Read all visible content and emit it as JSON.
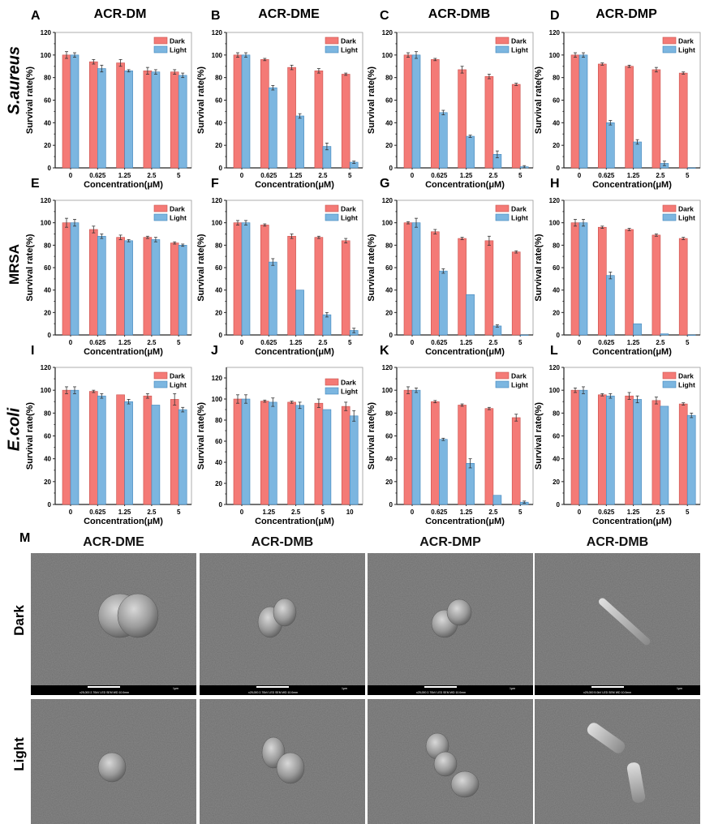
{
  "colors": {
    "dark": "#f47a76",
    "dark_edge": "#c9504c",
    "light": "#7cb6e0",
    "light_edge": "#3f84bb",
    "sem_bg": "#6e6e6e"
  },
  "legend": [
    "Dark",
    "Light"
  ],
  "y_label": "Survival rate(%)",
  "x_label": "Concentration(μM)",
  "row_labels": [
    "S.aureus",
    "MRSA",
    "E.coli"
  ],
  "chart_data": [
    {
      "panel": "A",
      "title": "ACR-DM",
      "type": "bar",
      "categories": [
        "0",
        "0.625",
        "1.25",
        "2.5",
        "5"
      ],
      "ylim": [
        0,
        120
      ],
      "yticks": [
        0,
        20,
        40,
        60,
        80,
        100,
        120
      ],
      "series": [
        {
          "name": "Dark",
          "values": [
            100,
            94,
            93,
            86,
            85
          ],
          "err": [
            3,
            2,
            3,
            3,
            2
          ]
        },
        {
          "name": "Light",
          "values": [
            100,
            88,
            86,
            85,
            82
          ],
          "err": [
            2,
            3,
            1,
            2,
            2
          ]
        }
      ]
    },
    {
      "panel": "B",
      "title": "ACR-DME",
      "type": "bar",
      "categories": [
        "0",
        "0.625",
        "1.25",
        "2.5",
        "5"
      ],
      "ylim": [
        0,
        120
      ],
      "yticks": [
        0,
        20,
        40,
        60,
        80,
        100,
        120
      ],
      "series": [
        {
          "name": "Dark",
          "values": [
            100,
            96,
            89,
            86,
            83
          ],
          "err": [
            2,
            1,
            2,
            2,
            1
          ]
        },
        {
          "name": "Light",
          "values": [
            100,
            71,
            46,
            19,
            5
          ],
          "err": [
            2,
            2,
            2,
            3,
            1
          ]
        }
      ]
    },
    {
      "panel": "C",
      "title": "ACR-DMB",
      "type": "bar",
      "categories": [
        "0",
        "0.625",
        "1.25",
        "2.5",
        "5"
      ],
      "ylim": [
        0,
        120
      ],
      "yticks": [
        0,
        20,
        40,
        60,
        80,
        100,
        120
      ],
      "series": [
        {
          "name": "Dark",
          "values": [
            100,
            96,
            87,
            81,
            74
          ],
          "err": [
            2,
            1,
            3,
            2,
            1
          ]
        },
        {
          "name": "Light",
          "values": [
            100,
            49,
            28,
            12,
            1
          ],
          "err": [
            3,
            2,
            1,
            3,
            1
          ]
        }
      ]
    },
    {
      "panel": "D",
      "title": "ACR-DMP",
      "type": "bar",
      "categories": [
        "0",
        "0.625",
        "1.25",
        "2.5",
        "5"
      ],
      "ylim": [
        0,
        120
      ],
      "yticks": [
        0,
        20,
        40,
        60,
        80,
        100,
        120
      ],
      "series": [
        {
          "name": "Dark",
          "values": [
            100,
            92,
            90,
            87,
            84
          ],
          "err": [
            2,
            1,
            1,
            2,
            1
          ]
        },
        {
          "name": "Light",
          "values": [
            100,
            40,
            23,
            4,
            0
          ],
          "err": [
            2,
            2,
            2,
            2,
            0
          ]
        }
      ]
    },
    {
      "panel": "E",
      "title": "",
      "type": "bar",
      "categories": [
        "0",
        "0.625",
        "1.25",
        "2.5",
        "5"
      ],
      "ylim": [
        0,
        120
      ],
      "yticks": [
        0,
        20,
        40,
        60,
        80,
        100,
        120
      ],
      "series": [
        {
          "name": "Dark",
          "values": [
            100,
            94,
            87,
            87,
            82
          ],
          "err": [
            4,
            3,
            2,
            1,
            1
          ]
        },
        {
          "name": "Light",
          "values": [
            100,
            88,
            84,
            85,
            80
          ],
          "err": [
            3,
            2,
            1,
            2,
            1
          ]
        }
      ]
    },
    {
      "panel": "F",
      "title": "",
      "type": "bar",
      "categories": [
        "0",
        "0.625",
        "1.25",
        "2.5",
        "5"
      ],
      "ylim": [
        0,
        120
      ],
      "yticks": [
        0,
        20,
        40,
        60,
        80,
        100,
        120
      ],
      "series": [
        {
          "name": "Dark",
          "values": [
            100,
            98,
            88,
            87,
            84
          ],
          "err": [
            2,
            1,
            2,
            1,
            2
          ]
        },
        {
          "name": "Light",
          "values": [
            100,
            65,
            40,
            18,
            4
          ],
          "err": [
            2,
            3,
            0,
            2,
            2
          ]
        }
      ]
    },
    {
      "panel": "G",
      "title": "",
      "type": "bar",
      "categories": [
        "0",
        "0.625",
        "1.25",
        "2.5",
        "5"
      ],
      "ylim": [
        0,
        120
      ],
      "yticks": [
        0,
        20,
        40,
        60,
        80,
        100,
        120
      ],
      "series": [
        {
          "name": "Dark",
          "values": [
            100,
            92,
            86,
            84,
            74
          ],
          "err": [
            1,
            2,
            1,
            4,
            1
          ]
        },
        {
          "name": "Light",
          "values": [
            100,
            57,
            36,
            8,
            0
          ],
          "err": [
            4,
            2,
            0,
            1,
            0
          ]
        }
      ]
    },
    {
      "panel": "H",
      "title": "",
      "type": "bar",
      "categories": [
        "0",
        "0.625",
        "1.25",
        "2.5",
        "5"
      ],
      "ylim": [
        0,
        120
      ],
      "yticks": [
        0,
        20,
        40,
        60,
        80,
        100,
        120
      ],
      "series": [
        {
          "name": "Dark",
          "values": [
            100,
            96,
            94,
            89,
            86
          ],
          "err": [
            3,
            1,
            1,
            1,
            1
          ]
        },
        {
          "name": "Light",
          "values": [
            100,
            53,
            10,
            1,
            0
          ],
          "err": [
            3,
            3,
            0,
            0,
            0
          ]
        }
      ]
    },
    {
      "panel": "I",
      "title": "",
      "type": "bar",
      "categories": [
        "0",
        "0.625",
        "1.25",
        "2.5",
        "5"
      ],
      "ylim": [
        0,
        120
      ],
      "yticks": [
        0,
        20,
        40,
        60,
        80,
        100,
        120
      ],
      "series": [
        {
          "name": "Dark",
          "values": [
            100,
            99,
            96,
            95,
            92
          ],
          "err": [
            3,
            1,
            0,
            2,
            5
          ]
        },
        {
          "name": "Light",
          "values": [
            100,
            95,
            90,
            87,
            83
          ],
          "err": [
            3,
            2,
            2,
            0,
            2
          ]
        }
      ]
    },
    {
      "panel": "J",
      "title": "",
      "type": "bar",
      "categories": [
        "0",
        "1.25",
        "2.5",
        "5",
        "10"
      ],
      "ylim": [
        0,
        130
      ],
      "yticks": [
        0,
        20,
        40,
        60,
        80,
        100,
        120
      ],
      "series": [
        {
          "name": "Dark",
          "values": [
            100,
            98,
            97,
            96,
            93
          ],
          "err": [
            4,
            1,
            1,
            4,
            4
          ]
        },
        {
          "name": "Light",
          "values": [
            100,
            97,
            94,
            90,
            84
          ],
          "err": [
            4,
            4,
            3,
            0,
            5
          ]
        }
      ]
    },
    {
      "panel": "K",
      "title": "",
      "type": "bar",
      "categories": [
        "0",
        "0.625",
        "1.25",
        "2.5",
        "5"
      ],
      "ylim": [
        0,
        120
      ],
      "yticks": [
        0,
        20,
        40,
        60,
        80,
        100,
        120
      ],
      "series": [
        {
          "name": "Dark",
          "values": [
            100,
            90,
            87,
            84,
            76
          ],
          "err": [
            3,
            1,
            1,
            1,
            3
          ]
        },
        {
          "name": "Light",
          "values": [
            100,
            57,
            36,
            8,
            2
          ],
          "err": [
            2,
            1,
            4,
            0,
            1
          ]
        }
      ]
    },
    {
      "panel": "L",
      "title": "",
      "type": "bar",
      "categories": [
        "0",
        "0.625",
        "1.25",
        "2.5",
        "5"
      ],
      "ylim": [
        0,
        120
      ],
      "yticks": [
        0,
        20,
        40,
        60,
        80,
        100,
        120
      ],
      "series": [
        {
          "name": "Dark",
          "values": [
            100,
            96,
            95,
            91,
            88
          ],
          "err": [
            2,
            1,
            3,
            3,
            1
          ]
        },
        {
          "name": "Light",
          "values": [
            100,
            95,
            92,
            86,
            78
          ],
          "err": [
            3,
            2,
            3,
            0,
            2
          ]
        }
      ]
    }
  ],
  "sem": {
    "panel": "M",
    "columns": [
      "ACR-DME",
      "ACR-DMB",
      "ACR-DMP",
      "ACR-DMB"
    ],
    "rows": [
      "Dark",
      "Light"
    ],
    "scale_bar": "1μm",
    "info": [
      "x25,000  2.70kV LED  SEM  WD 10.0mm",
      "x25,000  2.70kV LED  SEM  WD 10.0mm",
      "x25,000  2.70kV LED  SEM  WD 10.0mm",
      "x25,000  5.0kV LED  SEM  WD 10.0mm"
    ]
  }
}
